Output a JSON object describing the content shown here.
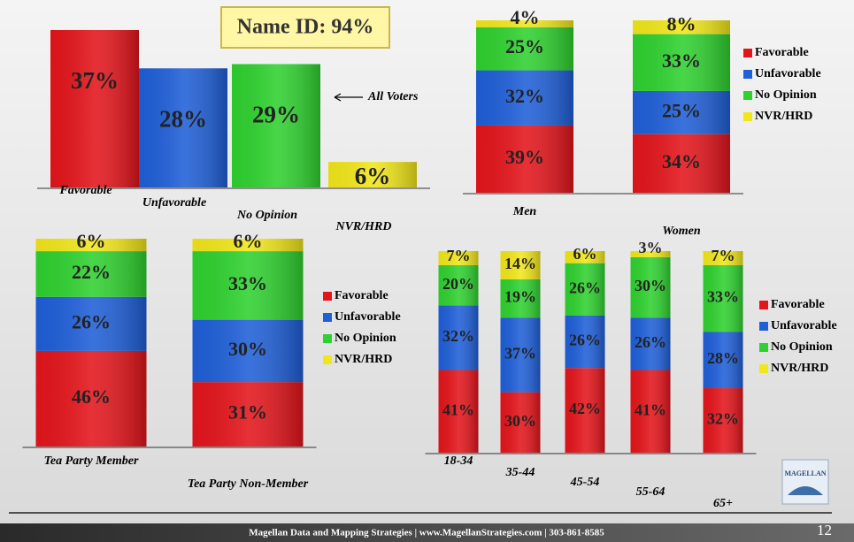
{
  "chart_data": [
    {
      "type": "bar",
      "categories": [
        "Favorable",
        "Unfavorable",
        "No Opinion",
        "NVR/HRD"
      ],
      "values": [
        37,
        28,
        29,
        6
      ],
      "value_labels": [
        "37%",
        "28%",
        "29%",
        "6%"
      ],
      "colors": [
        "#e3151b",
        "#1f5fd8",
        "#2fd12f",
        "#f1e61a"
      ],
      "annotations": [
        "Name ID: 94%",
        "All Voters"
      ]
    },
    {
      "type": "stacked_bar",
      "categories": [
        "Men",
        "Women"
      ],
      "series": [
        {
          "name": "Favorable",
          "color": "#e3151b",
          "values": [
            39,
            34
          ],
          "value_labels": [
            "39%",
            "34%"
          ]
        },
        {
          "name": "Unfavorable",
          "color": "#1f5fd8",
          "values": [
            32,
            25
          ],
          "value_labels": [
            "32%",
            "25%"
          ]
        },
        {
          "name": "No Opinion",
          "color": "#2fd12f",
          "values": [
            25,
            33
          ],
          "value_labels": [
            "25%",
            "33%"
          ]
        },
        {
          "name": "NVR/HRD",
          "color": "#f1e61a",
          "values": [
            4,
            8
          ],
          "value_labels": [
            "4%",
            "8%"
          ]
        }
      ]
    },
    {
      "type": "stacked_bar",
      "categories": [
        "Tea Party Member",
        "Tea Party Non-Member"
      ],
      "series": [
        {
          "name": "Favorable",
          "color": "#e3151b",
          "values": [
            46,
            31
          ],
          "value_labels": [
            "46%",
            "31%"
          ]
        },
        {
          "name": "Unfavorable",
          "color": "#1f5fd8",
          "values": [
            26,
            30
          ],
          "value_labels": [
            "26%",
            "30%"
          ]
        },
        {
          "name": "No Opinion",
          "color": "#2fd12f",
          "values": [
            22,
            33
          ],
          "value_labels": [
            "22%",
            "33%"
          ]
        },
        {
          "name": "NVR/HRD",
          "color": "#f1e61a",
          "values": [
            6,
            6
          ],
          "value_labels": [
            "6%",
            "6%"
          ]
        }
      ]
    },
    {
      "type": "stacked_bar",
      "categories": [
        "18-34",
        "35-44",
        "45-54",
        "55-64",
        "65+"
      ],
      "series": [
        {
          "name": "Favorable",
          "color": "#e3151b",
          "values": [
            41,
            30,
            42,
            41,
            32
          ],
          "value_labels": [
            "41%",
            "30%",
            "42%",
            "41%",
            "32%"
          ]
        },
        {
          "name": "Unfavorable",
          "color": "#1f5fd8",
          "values": [
            32,
            37,
            26,
            26,
            28
          ],
          "value_labels": [
            "32%",
            "37%",
            "26%",
            "26%",
            "28%"
          ]
        },
        {
          "name": "No Opinion",
          "color": "#2fd12f",
          "values": [
            20,
            19,
            26,
            30,
            33
          ],
          "value_labels": [
            "20%",
            "19%",
            "26%",
            "30%",
            "33%"
          ]
        },
        {
          "name": "NVR/HRD",
          "color": "#f1e61a",
          "values": [
            7,
            14,
            6,
            3,
            7
          ],
          "value_labels": [
            "7%",
            "14%",
            "6%",
            "3%",
            "7%"
          ]
        }
      ]
    }
  ],
  "footer": {
    "text": "Magellan Data and Mapping Strategies | www.MagellanStrategies.com | 303-861-8585",
    "page": "12",
    "logo": "MAGELLAN"
  }
}
